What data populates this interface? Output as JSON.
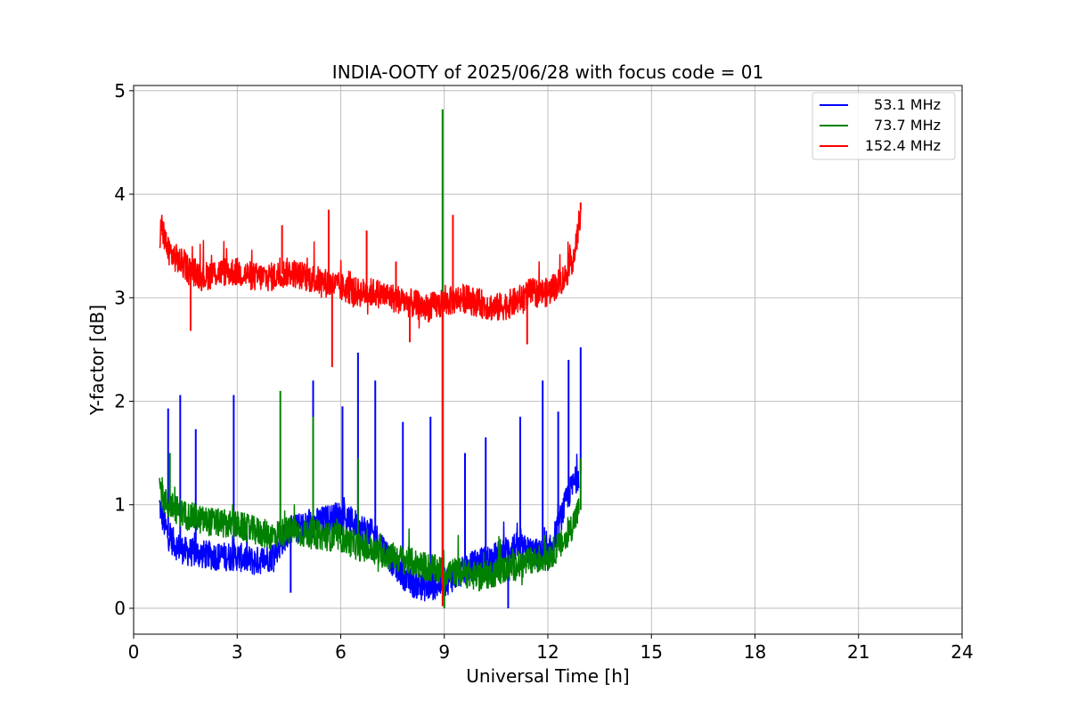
{
  "chart_data": {
    "type": "line",
    "title": "INDIA-OOTY of 2025/06/28 with focus code = 01",
    "xlabel": "Universal Time [h]",
    "ylabel": "Y-factor [dB]",
    "xlim": [
      0,
      24
    ],
    "ylim": [
      -0.25,
      5.05
    ],
    "xticks": [
      0,
      3,
      6,
      9,
      12,
      15,
      18,
      21,
      24
    ],
    "yticks": [
      0,
      1,
      2,
      3,
      4,
      5
    ],
    "grid": true,
    "legend_position": "top-right",
    "series": [
      {
        "name": "53.1 MHz",
        "color": "#0000ff",
        "x": [
          0.75,
          0.85,
          1.0,
          1.25,
          1.5,
          2.0,
          2.5,
          3.0,
          3.5,
          4.0,
          4.5,
          5.0,
          5.5,
          6.0,
          6.5,
          7.0,
          7.5,
          8.0,
          8.5,
          9.0,
          9.5,
          10.0,
          10.5,
          11.0,
          11.5,
          12.0,
          12.3,
          12.6,
          12.9
        ],
        "y": [
          1.0,
          0.85,
          0.7,
          0.6,
          0.55,
          0.52,
          0.5,
          0.5,
          0.45,
          0.5,
          0.75,
          0.8,
          0.85,
          0.9,
          0.8,
          0.7,
          0.45,
          0.25,
          0.2,
          0.25,
          0.35,
          0.45,
          0.5,
          0.6,
          0.55,
          0.5,
          0.8,
          1.1,
          1.3
        ],
        "spikes": [
          {
            "x": 1.0,
            "y": 1.93
          },
          {
            "x": 1.35,
            "y": 2.06
          },
          {
            "x": 1.8,
            "y": 1.73
          },
          {
            "x": 2.9,
            "y": 2.06
          },
          {
            "x": 4.55,
            "y": 0.15
          },
          {
            "x": 5.2,
            "y": 2.2
          },
          {
            "x": 6.05,
            "y": 1.95
          },
          {
            "x": 6.5,
            "y": 2.47
          },
          {
            "x": 7.0,
            "y": 2.2
          },
          {
            "x": 7.8,
            "y": 1.8
          },
          {
            "x": 8.6,
            "y": 1.85
          },
          {
            "x": 9.6,
            "y": 1.5
          },
          {
            "x": 10.2,
            "y": 1.65
          },
          {
            "x": 10.85,
            "y": 0.0
          },
          {
            "x": 11.2,
            "y": 1.85
          },
          {
            "x": 11.85,
            "y": 2.2
          },
          {
            "x": 12.3,
            "y": 1.9
          },
          {
            "x": 12.6,
            "y": 2.4
          },
          {
            "x": 12.95,
            "y": 2.52
          }
        ]
      },
      {
        "name": "73.7 MHz",
        "color": "#008000",
        "x": [
          0.75,
          0.85,
          1.0,
          1.5,
          2.0,
          2.5,
          3.0,
          3.5,
          4.0,
          4.5,
          5.0,
          5.5,
          6.0,
          6.5,
          7.0,
          7.5,
          8.0,
          8.5,
          9.0,
          9.5,
          10.0,
          10.5,
          11.0,
          11.5,
          12.0,
          12.5,
          12.9
        ],
        "y": [
          1.2,
          1.05,
          1.0,
          0.9,
          0.85,
          0.82,
          0.8,
          0.75,
          0.7,
          0.75,
          0.72,
          0.7,
          0.68,
          0.6,
          0.55,
          0.5,
          0.45,
          0.4,
          0.35,
          0.35,
          0.3,
          0.35,
          0.4,
          0.45,
          0.5,
          0.65,
          0.95
        ],
        "spikes": [
          {
            "x": 1.05,
            "y": 1.5
          },
          {
            "x": 4.25,
            "y": 2.1
          },
          {
            "x": 5.2,
            "y": 1.85
          },
          {
            "x": 6.5,
            "y": 1.45
          },
          {
            "x": 8.95,
            "y": 4.82
          },
          {
            "x": 9.0,
            "y": 0.0
          },
          {
            "x": 12.95,
            "y": 1.45
          }
        ]
      },
      {
        "name": "152.4 MHz",
        "color": "#ff0000",
        "x": [
          0.75,
          0.8,
          1.0,
          1.5,
          2.0,
          2.5,
          3.0,
          3.5,
          4.0,
          4.5,
          5.0,
          5.5,
          6.0,
          6.5,
          7.0,
          7.5,
          8.0,
          8.5,
          9.0,
          9.5,
          10.0,
          10.5,
          11.0,
          11.5,
          12.0,
          12.5,
          12.8,
          12.95
        ],
        "y": [
          3.5,
          3.7,
          3.45,
          3.3,
          3.2,
          3.25,
          3.25,
          3.2,
          3.2,
          3.25,
          3.2,
          3.15,
          3.1,
          3.05,
          3.05,
          3.0,
          2.95,
          2.9,
          2.95,
          3.0,
          2.95,
          2.9,
          2.95,
          3.05,
          3.05,
          3.2,
          3.45,
          3.85
        ],
        "spikes": [
          {
            "x": 1.65,
            "y": 2.68
          },
          {
            "x": 4.3,
            "y": 3.7
          },
          {
            "x": 5.65,
            "y": 3.85
          },
          {
            "x": 5.75,
            "y": 2.33
          },
          {
            "x": 6.75,
            "y": 3.65
          },
          {
            "x": 7.6,
            "y": 3.35
          },
          {
            "x": 8.0,
            "y": 2.57
          },
          {
            "x": 8.95,
            "y": 0.02
          },
          {
            "x": 9.25,
            "y": 3.8
          },
          {
            "x": 11.4,
            "y": 2.55
          },
          {
            "x": 12.95,
            "y": 3.92
          }
        ]
      }
    ]
  }
}
